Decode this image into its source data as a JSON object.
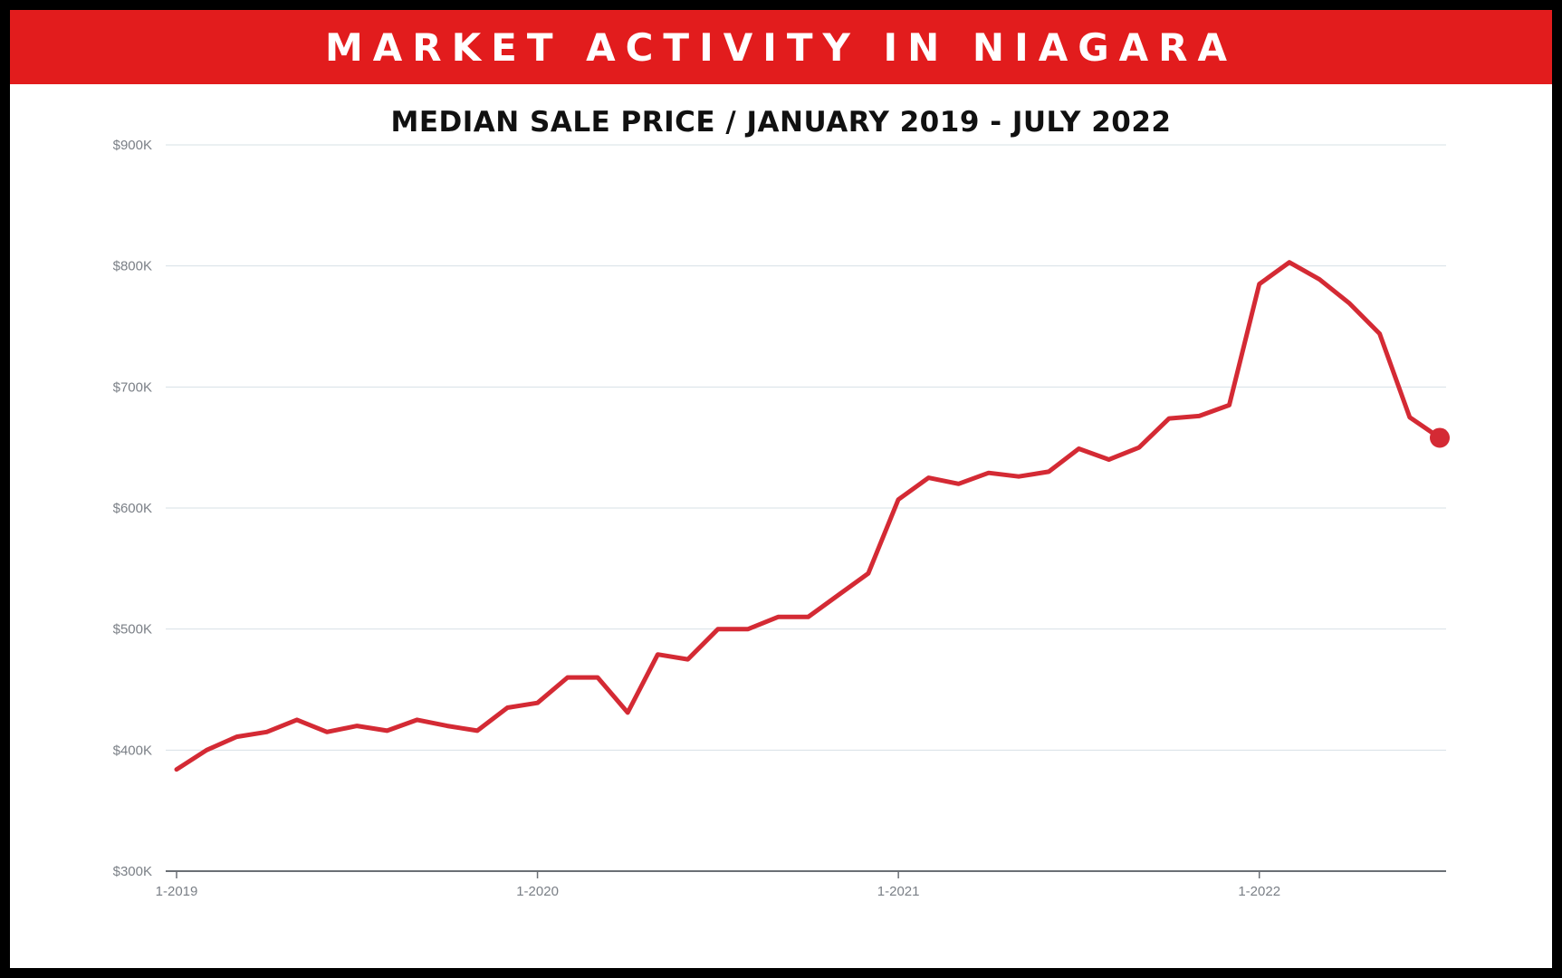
{
  "header": {
    "title": "MARKET ACTIVITY IN NIAGARA"
  },
  "chart_data": {
    "type": "line",
    "title": "MEDIAN SALE PRICE / JANUARY 2019 - JULY 2022",
    "xlabel": "",
    "ylabel": "",
    "x_start": "1-2019",
    "x_end": "7-2022",
    "x_tick_labels": [
      "1-2019",
      "1-2020",
      "1-2021",
      "1-2022"
    ],
    "y_tick_labels": [
      "$900K",
      "$800K",
      "$700K",
      "$600K",
      "$500K",
      "$400K",
      "$300K"
    ],
    "ylim": [
      300,
      900
    ],
    "y_unit": "thousand dollars",
    "grid": true,
    "line_color": "#d42a34",
    "series": [
      {
        "x": [
          "1-2019",
          "2-2019",
          "3-2019",
          "4-2019",
          "5-2019",
          "6-2019",
          "7-2019",
          "8-2019",
          "9-2019",
          "10-2019",
          "11-2019",
          "12-2019",
          "1-2020",
          "2-2020",
          "3-2020",
          "4-2020",
          "5-2020",
          "6-2020",
          "7-2020",
          "8-2020",
          "9-2020",
          "10-2020",
          "11-2020",
          "12-2020",
          "1-2021",
          "2-2021",
          "3-2021",
          "4-2021",
          "5-2021",
          "6-2021",
          "7-2021",
          "8-2021",
          "9-2021",
          "10-2021",
          "11-2021",
          "12-2021",
          "1-2022",
          "2-2022",
          "3-2022",
          "4-2022",
          "5-2022",
          "6-2022",
          "7-2022"
        ],
        "values": [
          384,
          400,
          411,
          415,
          425,
          415,
          420,
          416,
          425,
          420,
          416,
          435,
          439,
          460,
          460,
          431,
          479,
          475,
          500,
          500,
          510,
          510,
          528,
          546,
          607,
          625,
          620,
          629,
          626,
          630,
          649,
          640,
          650,
          674,
          676,
          685,
          785,
          803,
          789,
          769,
          744,
          675,
          658
        ]
      }
    ]
  }
}
